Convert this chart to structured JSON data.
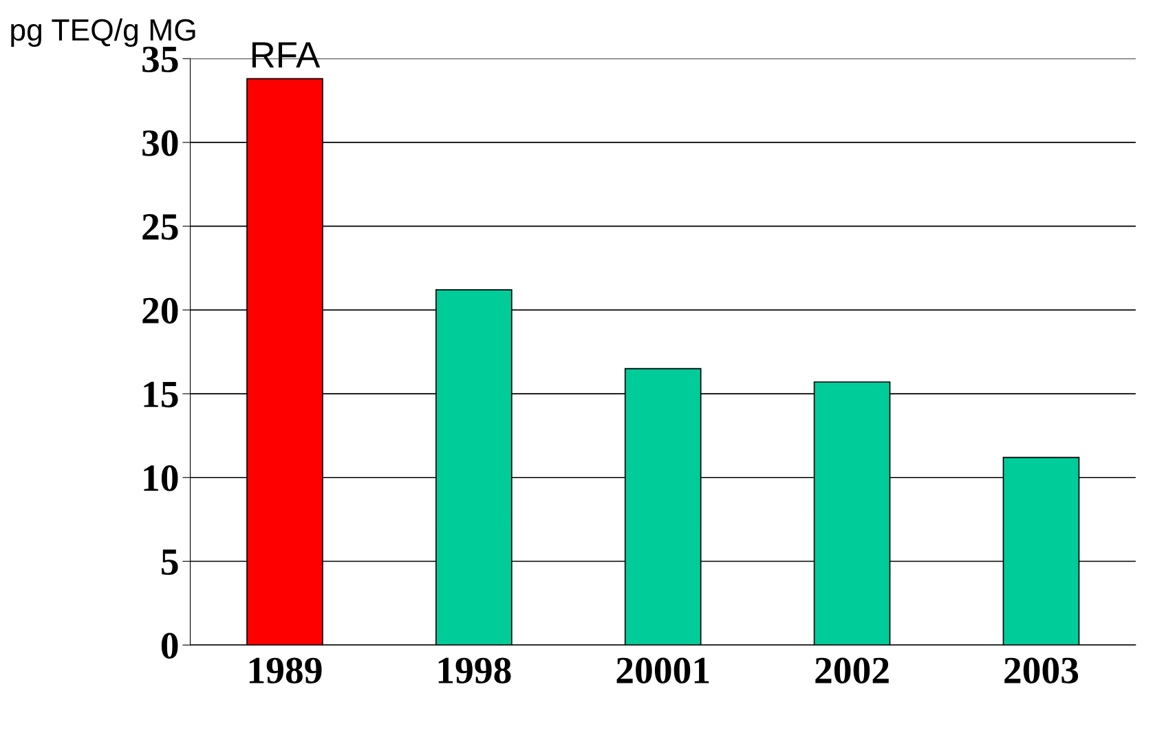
{
  "chart_data": {
    "type": "bar",
    "ylabel": "pg TEQ/g MG",
    "categories": [
      "1989",
      "1998",
      "20001",
      "2002",
      "2003"
    ],
    "values": [
      33.8,
      21.2,
      16.5,
      15.7,
      11.2
    ],
    "colors": [
      "#ff0000",
      "#00cc99",
      "#00cc99",
      "#00cc99",
      "#00cc99"
    ],
    "ylim": [
      0,
      35
    ],
    "yticks": [
      0,
      5,
      10,
      15,
      20,
      25,
      30,
      35
    ],
    "grid": "y",
    "annotations": [
      {
        "text": "RFA",
        "x": "1989",
        "y": 33.8
      }
    ]
  }
}
